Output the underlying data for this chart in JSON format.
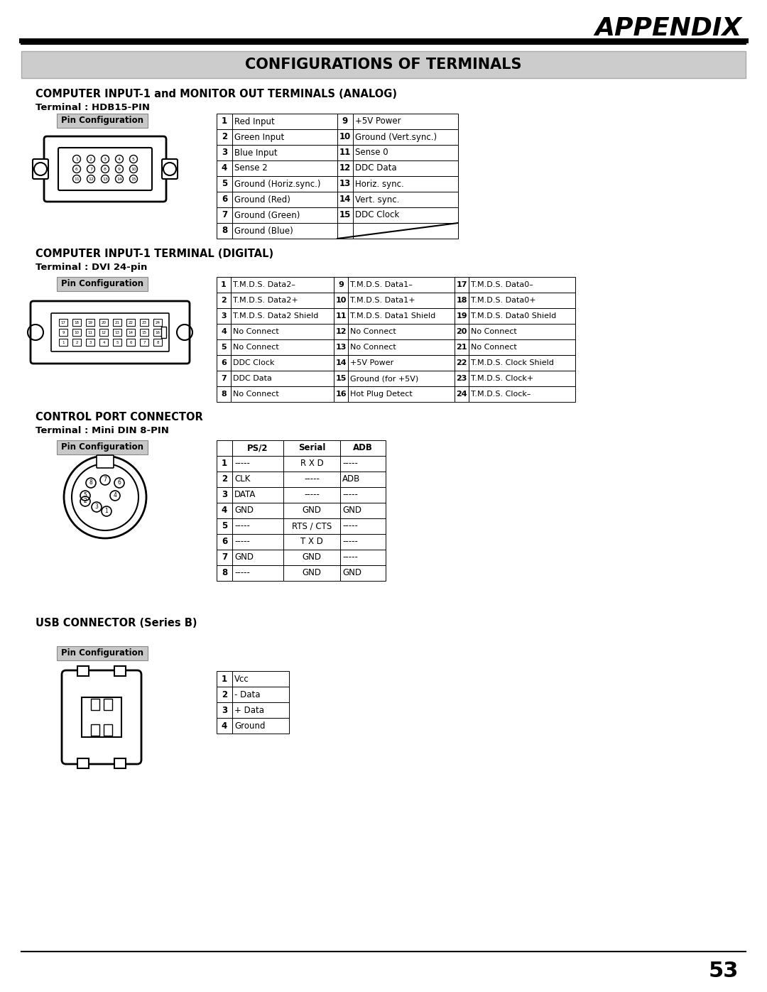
{
  "page_bg": "#ffffff",
  "page_num": "53",
  "appendix_title": "APPENDIX",
  "main_title": "CONFIGURATIONS OF TERMINALS",
  "section1_title": "COMPUTER INPUT-1 and MONITOR OUT TERMINALS (ANALOG)",
  "section1_sub": "Terminal : HDB15-PIN",
  "pin_config_label": "Pin Configuration",
  "analog_table": [
    [
      "1",
      "Red Input",
      "9",
      "+5V Power"
    ],
    [
      "2",
      "Green Input",
      "10",
      "Ground (Vert.sync.)"
    ],
    [
      "3",
      "Blue Input",
      "11",
      "Sense 0"
    ],
    [
      "4",
      "Sense 2",
      "12",
      "DDC Data"
    ],
    [
      "5",
      "Ground (Horiz.sync.)",
      "13",
      "Horiz. sync."
    ],
    [
      "6",
      "Ground (Red)",
      "14",
      "Vert. sync."
    ],
    [
      "7",
      "Ground (Green)",
      "15",
      "DDC Clock"
    ],
    [
      "8",
      "Ground (Blue)",
      "",
      ""
    ]
  ],
  "section2_title": "COMPUTER INPUT-1 TERMINAL (DIGITAL)",
  "section2_sub": "Terminal : DVI 24-pin",
  "digital_table": [
    [
      "1",
      "T.M.D.S. Data2–",
      "9",
      "T.M.D.S. Data1–",
      "17",
      "T.M.D.S. Data0–"
    ],
    [
      "2",
      "T.M.D.S. Data2+",
      "10",
      "T.M.D.S. Data1+",
      "18",
      "T.M.D.S. Data0+"
    ],
    [
      "3",
      "T.M.D.S. Data2 Shield",
      "11",
      "T.M.D.S. Data1 Shield",
      "19",
      "T.M.D.S. Data0 Shield"
    ],
    [
      "4",
      "No Connect",
      "12",
      "No Connect",
      "20",
      "No Connect"
    ],
    [
      "5",
      "No Connect",
      "13",
      "No Connect",
      "21",
      "No Connect"
    ],
    [
      "6",
      "DDC Clock",
      "14",
      "+5V Power",
      "22",
      "T.M.D.S. Clock Shield"
    ],
    [
      "7",
      "DDC Data",
      "15",
      "Ground (for +5V)",
      "23",
      "T.M.D.S. Clock+"
    ],
    [
      "8",
      "No Connect",
      "16",
      "Hot Plug Detect",
      "24",
      "T.M.D.S. Clock–"
    ]
  ],
  "section3_title": "CONTROL PORT CONNECTOR",
  "section3_sub": "Terminal : Mini DIN 8-PIN",
  "control_header": [
    "",
    "PS/2",
    "Serial",
    "ADB"
  ],
  "control_table": [
    [
      "1",
      "-----",
      "R X D",
      "-----"
    ],
    [
      "2",
      "CLK",
      "-----",
      "ADB"
    ],
    [
      "3",
      "DATA",
      "-----",
      "-----"
    ],
    [
      "4",
      "GND",
      "GND",
      "GND"
    ],
    [
      "5",
      "-----",
      "RTS / CTS",
      "-----"
    ],
    [
      "6",
      "-----",
      "T X D",
      "-----"
    ],
    [
      "7",
      "GND",
      "GND",
      "-----"
    ],
    [
      "8",
      "-----",
      "GND",
      "GND"
    ]
  ],
  "section4_title": "USB CONNECTOR (Series B)",
  "usb_table": [
    [
      "1",
      "Vcc"
    ],
    [
      "2",
      "- Data"
    ],
    [
      "3",
      "+ Data"
    ],
    [
      "4",
      "Ground"
    ]
  ]
}
